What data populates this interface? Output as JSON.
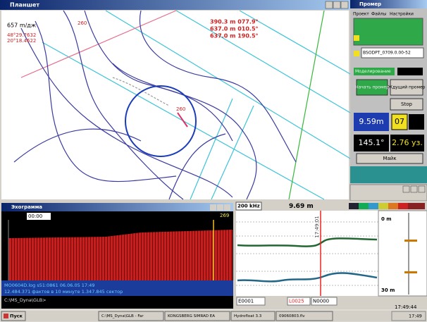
{
  "map_window": {
    "title": "Планшет",
    "scale": "657 m/дж",
    "coords": [
      "48°29.7632",
      "20°18.4622"
    ],
    "labels": [
      "260",
      "260"
    ],
    "readouts": [
      "390.3 m  077.9°",
      "637.0 m  010.5°",
      "637.0 m  190.5°"
    ]
  },
  "control_panel": {
    "title": "Промер",
    "menu": [
      "Проект",
      "Файлы",
      "Настройки"
    ],
    "file": "BSODPT_0709.0.00-52",
    "status": "Моделирование",
    "buttons": [
      "Начать промер",
      "Ждущий промер",
      "Stop",
      "Майк"
    ],
    "depth": "9.59m",
    "line": "07",
    "heading": "145.1°",
    "speed": "2.76 уз."
  },
  "echogram": {
    "title": "Эхограмма",
    "time": "00:00",
    "ping": "269",
    "log": [
      "MO0604D.log   s51:0861 06.06.05 17:49",
      "12.484.371 фактов в 10 минуте   1.347.845 сектор"
    ],
    "path": "C:\\MS_Dyna\\GLB>"
  },
  "sounder": {
    "frequency": "200 kHz",
    "depth": "9.69 m",
    "time_mark": "17:49:01",
    "range_top": "0 m",
    "range_bottom": "30 m",
    "counters": [
      "E0001",
      "L0025",
      "N0000"
    ],
    "clock": "17:49:44"
  },
  "taskbar": {
    "start": "Пуск",
    "tasks": [
      "C:\\MS_Dyna\\GLB - Far",
      "KONGSBERG SIMRAD EA",
      "Hydrofloat 3.3",
      "09060803.flv"
    ],
    "clock": "17:49"
  }
}
